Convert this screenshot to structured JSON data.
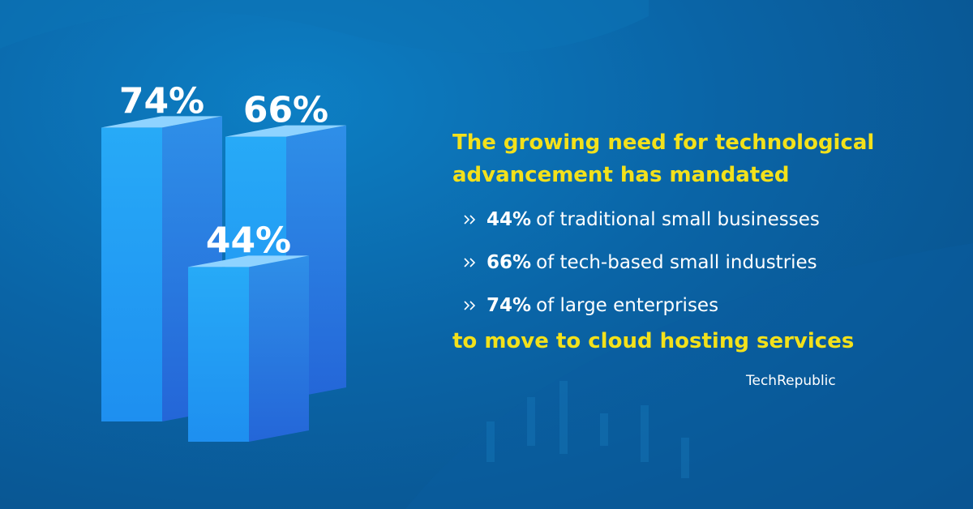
{
  "chart_data": {
    "type": "bar3d",
    "title": "The growing need for technological advancement has mandated",
    "categories": [
      "of traditional small businesses",
      "of tech-based small industries",
      "of large enterprises"
    ],
    "values": [
      44,
      66,
      74
    ],
    "value_labels": [
      "44%",
      "66%",
      "74%"
    ],
    "footer": "to move to cloud hosting services",
    "source": "TechRepublic",
    "color": "#1f9ff3"
  }
}
